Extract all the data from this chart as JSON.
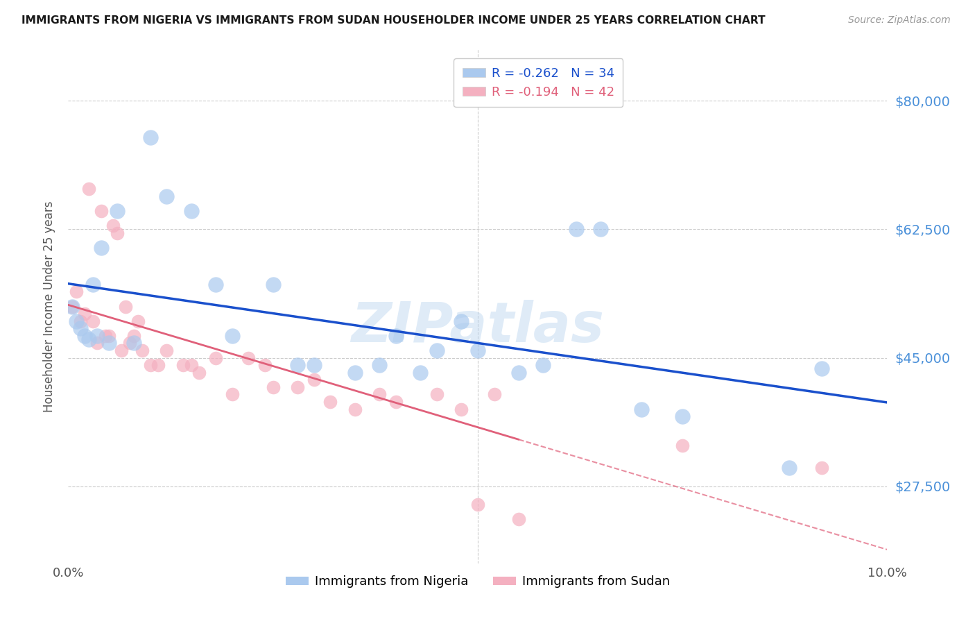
{
  "title": "IMMIGRANTS FROM NIGERIA VS IMMIGRANTS FROM SUDAN HOUSEHOLDER INCOME UNDER 25 YEARS CORRELATION CHART",
  "source": "Source: ZipAtlas.com",
  "ylabel": "Householder Income Under 25 years",
  "ytick_labels": [
    "$80,000",
    "$62,500",
    "$45,000",
    "$27,500"
  ],
  "ytick_values": [
    80000,
    62500,
    45000,
    27500
  ],
  "xlim": [
    0.0,
    10.0
  ],
  "ylim": [
    17000,
    87000
  ],
  "legend_nigeria": "Immigrants from Nigeria",
  "legend_sudan": "Immigrants from Sudan",
  "R_nigeria": -0.262,
  "N_nigeria": 34,
  "R_sudan": -0.194,
  "N_sudan": 42,
  "color_nigeria": "#aac9ee",
  "color_sudan": "#f4b0c0",
  "color_nigeria_line": "#1a50cc",
  "color_sudan_line": "#e0607a",
  "watermark": "ZIPatlas",
  "nigeria_x": [
    0.05,
    0.1,
    0.15,
    0.2,
    0.25,
    0.3,
    0.35,
    0.4,
    0.5,
    0.6,
    0.8,
    1.0,
    1.2,
    1.5,
    1.8,
    2.0,
    2.5,
    2.8,
    3.0,
    3.5,
    3.8,
    4.0,
    4.3,
    4.5,
    4.8,
    5.0,
    5.5,
    5.8,
    6.2,
    6.5,
    7.0,
    7.5,
    8.8,
    9.2
  ],
  "nigeria_y": [
    52000,
    50000,
    49000,
    48000,
    47500,
    55000,
    48000,
    60000,
    47000,
    65000,
    47000,
    75000,
    67000,
    65000,
    55000,
    48000,
    55000,
    44000,
    44000,
    43000,
    44000,
    48000,
    43000,
    46000,
    50000,
    46000,
    43000,
    44000,
    62500,
    62500,
    38000,
    37000,
    30000,
    43500
  ],
  "sudan_x": [
    0.05,
    0.1,
    0.15,
    0.2,
    0.25,
    0.3,
    0.35,
    0.4,
    0.45,
    0.5,
    0.55,
    0.6,
    0.65,
    0.7,
    0.75,
    0.8,
    0.85,
    0.9,
    1.0,
    1.1,
    1.2,
    1.4,
    1.5,
    1.6,
    1.8,
    2.0,
    2.2,
    2.4,
    2.5,
    2.8,
    3.0,
    3.2,
    3.5,
    3.8,
    4.0,
    4.5,
    4.8,
    5.0,
    5.2,
    5.5,
    7.5,
    9.2
  ],
  "sudan_y": [
    52000,
    54000,
    50000,
    51000,
    68000,
    50000,
    47000,
    65000,
    48000,
    48000,
    63000,
    62000,
    46000,
    52000,
    47000,
    48000,
    50000,
    46000,
    44000,
    44000,
    46000,
    44000,
    44000,
    43000,
    45000,
    40000,
    45000,
    44000,
    41000,
    41000,
    42000,
    39000,
    38000,
    40000,
    39000,
    40000,
    38000,
    25000,
    40000,
    23000,
    33000,
    30000
  ],
  "sudan_line_solid_end": 5.5,
  "xtick_positions": [
    0.0,
    2.5,
    5.0,
    7.5,
    10.0
  ],
  "xtick_labels": [
    "0.0%",
    "",
    "",
    "",
    "10.0%"
  ]
}
